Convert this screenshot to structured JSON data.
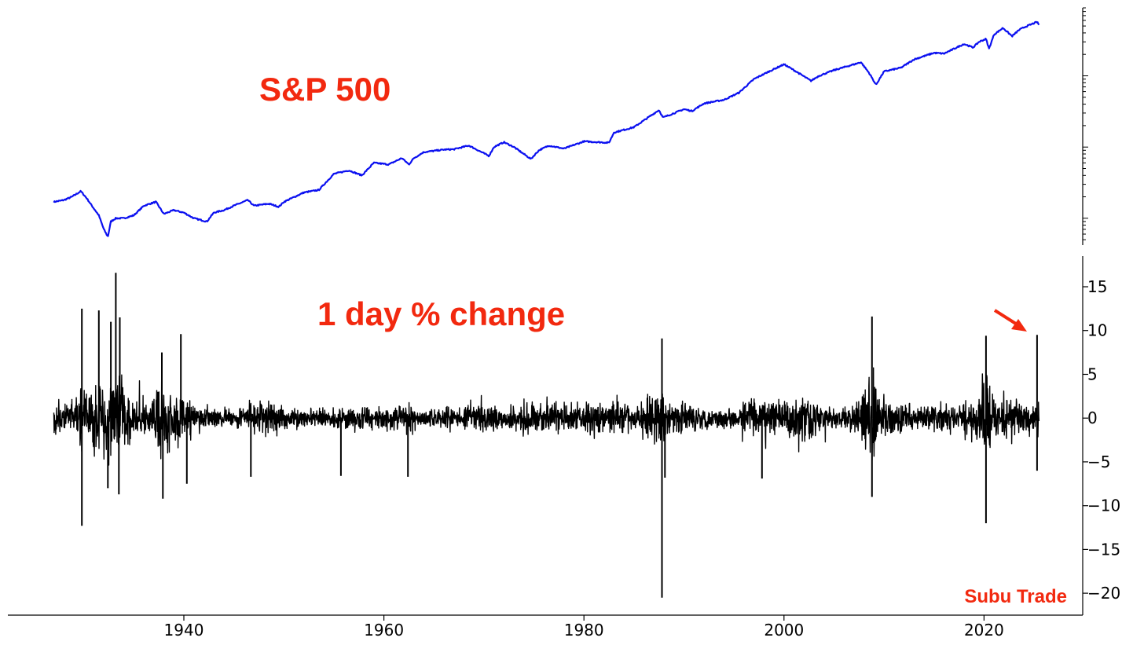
{
  "chart_data": [
    {
      "type": "line",
      "title": "",
      "annotation": "S&P 500",
      "yscale": "log",
      "color": "#0b10f0",
      "series": [
        {
          "x": [
            1927.0,
            1928.0,
            1928.8,
            1929.7,
            1930.3,
            1930.8,
            1931.5,
            1932.0,
            1932.4,
            1932.7,
            1933.2,
            1934.0,
            1935.0,
            1936.0,
            1937.2,
            1938.0,
            1939.0,
            1940.0,
            1941.0,
            1942.3,
            1943.0,
            1944.0,
            1945.0,
            1946.4,
            1947.0,
            1948.5,
            1949.5,
            1950.0,
            1952.0,
            1953.5,
            1955.0,
            1956.5,
            1957.8,
            1959.0,
            1960.5,
            1961.8,
            1962.5,
            1963.0,
            1964.0,
            1966.0,
            1967.0,
            1968.5,
            1970.5,
            1971.0,
            1972.0,
            1973.0,
            1974.7,
            1975.5,
            1976.5,
            1978.0,
            1980.0,
            1982.5,
            1983.0,
            1985.0,
            1987.5,
            1987.9,
            1988.5,
            1990.0,
            1990.8,
            1992.0,
            1994.0,
            1995.5,
            1997.0,
            1998.5,
            2000.0,
            2001.0,
            2002.7,
            2003.5,
            2005.0,
            2007.7,
            2008.5,
            2009.2,
            2010.0,
            2011.7,
            2013.0,
            2015.0,
            2016.0,
            2018.0,
            2018.9,
            2019.5,
            2020.2,
            2020.5,
            2021.0,
            2021.9,
            2022.8,
            2023.5,
            2024.0,
            2025.3,
            2025.5
          ],
          "y": [
            17,
            18,
            20,
            24,
            19,
            15,
            11,
            7,
            5.5,
            9,
            10,
            10,
            11,
            15,
            17,
            11.5,
            13,
            12,
            10,
            9,
            12,
            13,
            15,
            18,
            15,
            16,
            14.5,
            17,
            23,
            25,
            42,
            47,
            40,
            60,
            57,
            70,
            57,
            70,
            85,
            92,
            93,
            105,
            75,
            100,
            117,
            100,
            68,
            90,
            105,
            95,
            120,
            115,
            160,
            190,
            330,
            260,
            280,
            340,
            320,
            410,
            460,
            580,
            900,
            1150,
            1450,
            1200,
            850,
            1000,
            1200,
            1550,
            1100,
            750,
            1150,
            1300,
            1700,
            2100,
            2050,
            2800,
            2500,
            3000,
            3300,
            2400,
            3800,
            4700,
            3600,
            4400,
            4800,
            5700,
            5200
          ]
        }
      ]
    },
    {
      "type": "line",
      "title": "",
      "annotation": "1 day % change",
      "xlim": [
        1923,
        2031
      ],
      "ylim": [
        -22.5,
        18.5
      ],
      "xticks": [
        1940,
        1960,
        1980,
        2000,
        2020
      ],
      "xtick_labels": [
        "1940",
        "1960",
        "1980",
        "2000",
        "2020"
      ],
      "yticks": [
        15,
        10,
        5,
        0,
        -5,
        -10,
        -15,
        -20
      ],
      "ytick_labels": [
        "15",
        "10",
        "5",
        "0",
        "−5",
        "−10",
        "−15",
        "−20"
      ],
      "color": "#000000",
      "volatility": {
        "x": [
          1927,
          1929,
          1929.8,
          1930.5,
          1931.5,
          1932.3,
          1933.2,
          1934,
          1935,
          1936.5,
          1937.8,
          1938.8,
          1940,
          1941,
          1942,
          1944,
          1946,
          1947,
          1950,
          1952,
          1955.5,
          1957,
          1960,
          1962.5,
          1964,
          1966,
          1967,
          1970,
          1972,
          1974.5,
          1976,
          1980,
          1982,
          1985,
          1987.8,
          1988.5,
          1990,
          1992,
          1995,
          1997,
          1998.5,
          2000,
          2001,
          2002.5,
          2003.5,
          2004,
          2006,
          2007.5,
          2008.8,
          2009.5,
          2010.5,
          2012,
          2014,
          2016,
          2018,
          2019,
          2020.2,
          2020.6,
          2021.5,
          2022.5,
          2023.5,
          2025.3
        ],
        "vol": [
          1.0,
          1.1,
          2.5,
          1.6,
          2.2,
          3.2,
          3.5,
          2.2,
          1.3,
          1.1,
          2.4,
          1.8,
          1.5,
          1.0,
          0.8,
          0.5,
          0.7,
          1.1,
          0.8,
          0.5,
          0.7,
          0.9,
          0.7,
          1.1,
          0.5,
          0.8,
          0.7,
          1.0,
          0.6,
          1.3,
          0.8,
          1.1,
          1.0,
          0.9,
          2.0,
          1.0,
          1.0,
          0.7,
          0.7,
          1.2,
          1.3,
          1.4,
          1.3,
          1.6,
          1.1,
          0.7,
          0.7,
          1.1,
          3.3,
          1.6,
          1.1,
          1.0,
          0.7,
          1.0,
          1.1,
          1.0,
          3.5,
          1.5,
          1.0,
          1.6,
          1.0,
          1.3
        ]
      },
      "spikes": [
        {
          "x": 1929.8,
          "y": 12.5
        },
        {
          "x": 1929.8,
          "y": -12.3
        },
        {
          "x": 1931.5,
          "y": 12.3
        },
        {
          "x": 1932.7,
          "y": 11.0
        },
        {
          "x": 1933.2,
          "y": 16.6
        },
        {
          "x": 1933.6,
          "y": 11.5
        },
        {
          "x": 1932.4,
          "y": -8.0
        },
        {
          "x": 1933.5,
          "y": -8.7
        },
        {
          "x": 1937.8,
          "y": 7.5
        },
        {
          "x": 1937.9,
          "y": -9.2
        },
        {
          "x": 1939.7,
          "y": 9.6
        },
        {
          "x": 1940.3,
          "y": -7.5
        },
        {
          "x": 1946.7,
          "y": -6.7
        },
        {
          "x": 1955.7,
          "y": -6.6
        },
        {
          "x": 1962.4,
          "y": -6.7
        },
        {
          "x": 1987.8,
          "y": 9.1
        },
        {
          "x": 1987.8,
          "y": -20.5
        },
        {
          "x": 1988.1,
          "y": -6.8
        },
        {
          "x": 1997.8,
          "y": -6.9
        },
        {
          "x": 2008.8,
          "y": 11.6
        },
        {
          "x": 2008.8,
          "y": -9.0
        },
        {
          "x": 2020.2,
          "y": 9.4
        },
        {
          "x": 2020.2,
          "y": -12.0
        },
        {
          "x": 2025.3,
          "y": 9.5
        },
        {
          "x": 2025.3,
          "y": -6.0
        }
      ]
    }
  ],
  "watermark": "Subu Trade",
  "colors": {
    "annotation": "#f2290f",
    "price_line": "#0b10f0",
    "change_line": "#000000"
  }
}
